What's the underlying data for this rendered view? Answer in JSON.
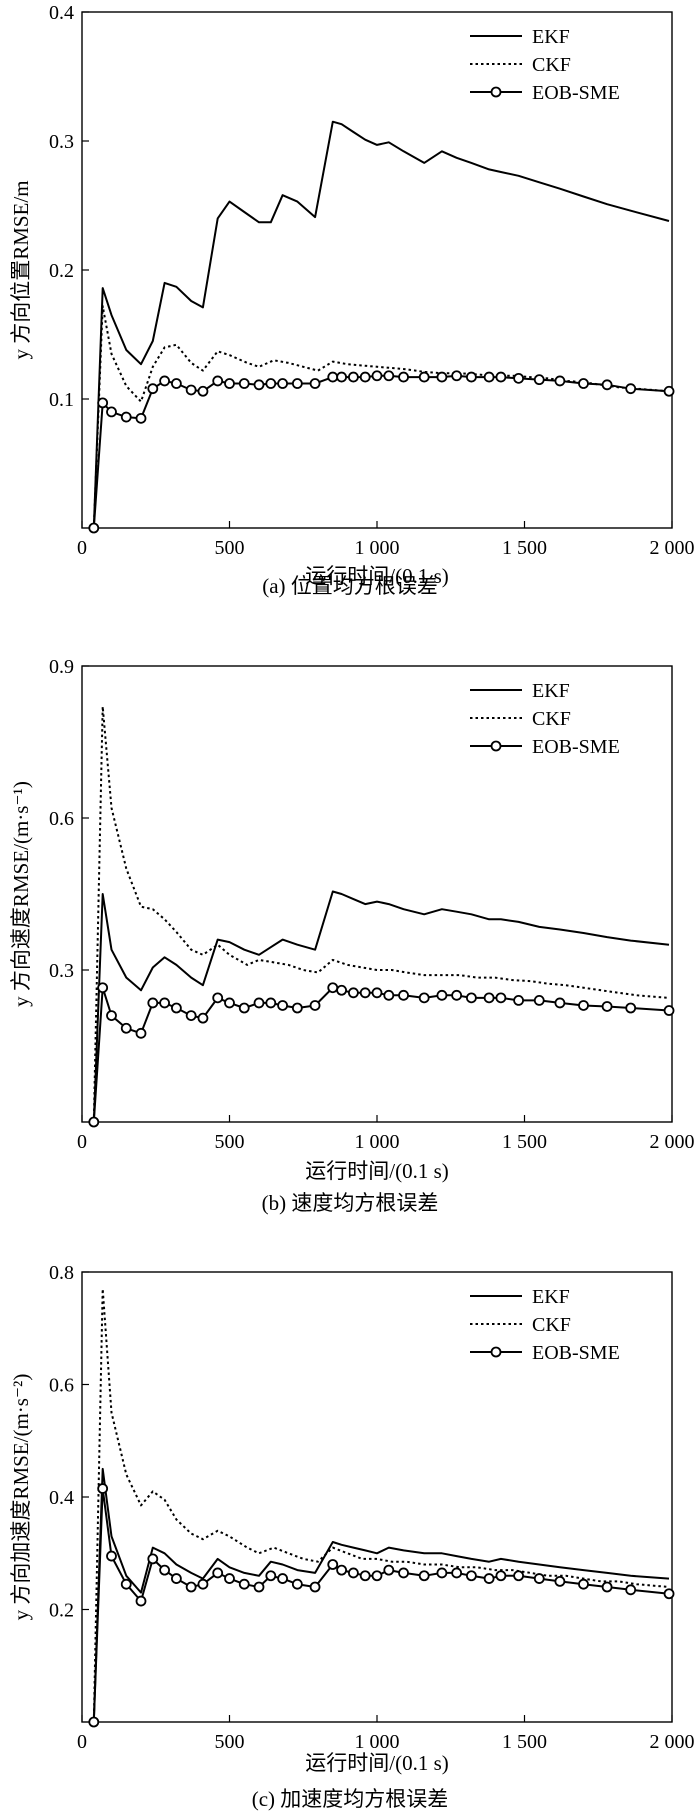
{
  "captions": [
    "(a) 位置均方根误差",
    "(b) 速度均方根误差",
    "(c) 加速度均方根误差"
  ],
  "chart_data": [
    {
      "type": "line",
      "xlabel": "运行时间/(0.1 s)",
      "ylabel": "y 方向位置RMSE/m",
      "xlim": [
        0,
        2000
      ],
      "ylim": [
        0,
        0.4
      ],
      "xticks": [
        0,
        500,
        1000,
        1500,
        2000
      ],
      "xtick_labels": [
        "0",
        "500",
        "1 000",
        "1 500",
        "2 000"
      ],
      "yticks": [
        0.1,
        0.2,
        0.3,
        0.4
      ],
      "ytick_labels": [
        "0.1",
        "0.2",
        "0.3",
        "0.4"
      ],
      "grid": false,
      "legend": "top-right",
      "series": [
        {
          "name": "EKF",
          "style": "solid",
          "x": [
            40,
            70,
            100,
            150,
            200,
            240,
            280,
            320,
            370,
            410,
            460,
            500,
            550,
            600,
            640,
            680,
            730,
            790,
            850,
            880,
            920,
            960,
            1000,
            1040,
            1090,
            1160,
            1220,
            1270,
            1320,
            1380,
            1420,
            1480,
            1550,
            1620,
            1700,
            1780,
            1860,
            1990
          ],
          "y": [
            0,
            0.186,
            0.165,
            0.138,
            0.127,
            0.145,
            0.19,
            0.187,
            0.176,
            0.171,
            0.24,
            0.253,
            0.245,
            0.237,
            0.237,
            0.258,
            0.253,
            0.241,
            0.315,
            0.313,
            0.307,
            0.301,
            0.297,
            0.299,
            0.292,
            0.283,
            0.292,
            0.287,
            0.283,
            0.278,
            0.276,
            0.273,
            0.268,
            0.263,
            0.257,
            0.251,
            0.246,
            0.238
          ]
        },
        {
          "name": "CKF",
          "style": "dotted",
          "x": [
            40,
            70,
            100,
            150,
            200,
            240,
            280,
            320,
            370,
            410,
            460,
            500,
            560,
            600,
            650,
            700,
            750,
            800,
            850,
            900,
            950,
            1000,
            1050,
            1100,
            1160,
            1220,
            1280,
            1340,
            1400,
            1460,
            1520,
            1580,
            1640,
            1700,
            1760,
            1820,
            1880,
            1990
          ],
          "y": [
            0,
            0.172,
            0.135,
            0.11,
            0.098,
            0.125,
            0.14,
            0.142,
            0.128,
            0.122,
            0.137,
            0.134,
            0.128,
            0.125,
            0.13,
            0.128,
            0.125,
            0.122,
            0.129,
            0.127,
            0.126,
            0.125,
            0.124,
            0.123,
            0.121,
            0.12,
            0.12,
            0.119,
            0.118,
            0.118,
            0.117,
            0.116,
            0.114,
            0.113,
            0.111,
            0.109,
            0.108,
            0.106
          ]
        },
        {
          "name": "EOB-SME",
          "style": "solid-circle",
          "x": [
            40,
            70,
            100,
            150,
            200,
            240,
            280,
            320,
            370,
            410,
            460,
            500,
            550,
            600,
            640,
            680,
            730,
            790,
            850,
            880,
            920,
            960,
            1000,
            1040,
            1090,
            1160,
            1220,
            1270,
            1320,
            1380,
            1420,
            1480,
            1550,
            1620,
            1700,
            1780,
            1860,
            1990
          ],
          "y": [
            0,
            0.097,
            0.09,
            0.086,
            0.085,
            0.108,
            0.114,
            0.112,
            0.107,
            0.106,
            0.114,
            0.112,
            0.112,
            0.111,
            0.112,
            0.112,
            0.112,
            0.112,
            0.117,
            0.117,
            0.117,
            0.117,
            0.118,
            0.118,
            0.117,
            0.117,
            0.117,
            0.118,
            0.117,
            0.117,
            0.117,
            0.116,
            0.115,
            0.114,
            0.112,
            0.111,
            0.108,
            0.106
          ]
        }
      ]
    },
    {
      "type": "line",
      "xlabel": "运行时间/(0.1 s)",
      "ylabel": "y 方向速度RMSE/(m·s⁻¹)",
      "xlim": [
        0,
        2000
      ],
      "ylim": [
        0,
        0.9
      ],
      "xticks": [
        0,
        500,
        1000,
        1500,
        2000
      ],
      "xtick_labels": [
        "0",
        "500",
        "1 000",
        "1 500",
        "2 000"
      ],
      "yticks": [
        0.3,
        0.6,
        0.9
      ],
      "ytick_labels": [
        "0.3",
        "0.6",
        "0.9"
      ],
      "grid": false,
      "legend": "top-right",
      "series": [
        {
          "name": "EKF",
          "style": "solid",
          "x": [
            40,
            70,
            100,
            150,
            200,
            240,
            280,
            320,
            370,
            410,
            460,
            500,
            550,
            600,
            640,
            680,
            730,
            790,
            850,
            880,
            920,
            960,
            1000,
            1040,
            1090,
            1160,
            1220,
            1270,
            1320,
            1380,
            1420,
            1480,
            1550,
            1620,
            1700,
            1780,
            1860,
            1990
          ],
          "y": [
            0,
            0.45,
            0.34,
            0.285,
            0.26,
            0.305,
            0.325,
            0.31,
            0.285,
            0.27,
            0.36,
            0.355,
            0.34,
            0.33,
            0.345,
            0.36,
            0.35,
            0.34,
            0.455,
            0.45,
            0.44,
            0.43,
            0.435,
            0.43,
            0.42,
            0.41,
            0.42,
            0.415,
            0.41,
            0.4,
            0.4,
            0.395,
            0.385,
            0.38,
            0.373,
            0.365,
            0.358,
            0.35
          ]
        },
        {
          "name": "CKF",
          "style": "dotted",
          "x": [
            40,
            70,
            100,
            150,
            200,
            240,
            280,
            320,
            370,
            410,
            460,
            500,
            560,
            600,
            650,
            700,
            750,
            800,
            850,
            900,
            950,
            1000,
            1050,
            1100,
            1160,
            1220,
            1280,
            1340,
            1400,
            1460,
            1520,
            1580,
            1640,
            1700,
            1760,
            1820,
            1880,
            1990
          ],
          "y": [
            0,
            0.82,
            0.62,
            0.5,
            0.425,
            0.42,
            0.4,
            0.375,
            0.34,
            0.33,
            0.35,
            0.33,
            0.31,
            0.32,
            0.315,
            0.31,
            0.3,
            0.295,
            0.32,
            0.31,
            0.305,
            0.3,
            0.3,
            0.295,
            0.29,
            0.29,
            0.29,
            0.285,
            0.285,
            0.28,
            0.278,
            0.273,
            0.27,
            0.265,
            0.26,
            0.255,
            0.25,
            0.245
          ]
        },
        {
          "name": "EOB-SME",
          "style": "solid-circle",
          "x": [
            40,
            70,
            100,
            150,
            200,
            240,
            280,
            320,
            370,
            410,
            460,
            500,
            550,
            600,
            640,
            680,
            730,
            790,
            850,
            880,
            920,
            960,
            1000,
            1040,
            1090,
            1160,
            1220,
            1270,
            1320,
            1380,
            1420,
            1480,
            1550,
            1620,
            1700,
            1780,
            1860,
            1990
          ],
          "y": [
            0,
            0.265,
            0.21,
            0.185,
            0.175,
            0.235,
            0.235,
            0.225,
            0.21,
            0.205,
            0.245,
            0.235,
            0.225,
            0.235,
            0.235,
            0.23,
            0.225,
            0.23,
            0.265,
            0.26,
            0.255,
            0.255,
            0.255,
            0.25,
            0.25,
            0.245,
            0.25,
            0.25,
            0.245,
            0.245,
            0.245,
            0.24,
            0.24,
            0.235,
            0.23,
            0.228,
            0.225,
            0.22
          ]
        }
      ]
    },
    {
      "type": "line",
      "xlabel": "运行时间/(0.1 s)",
      "ylabel": "y 方向加速度RMSE/(m·s⁻²)",
      "xlim": [
        0,
        2000
      ],
      "ylim": [
        0,
        0.8
      ],
      "xticks": [
        0,
        500,
        1000,
        1500,
        2000
      ],
      "xtick_labels": [
        "0",
        "500",
        "1 000",
        "1 500",
        "2 000"
      ],
      "yticks": [
        0.2,
        0.4,
        0.6,
        0.8
      ],
      "ytick_labels": [
        "0.2",
        "0.4",
        "0.6",
        "0.8"
      ],
      "grid": false,
      "legend": "top-right",
      "series": [
        {
          "name": "EKF",
          "style": "solid",
          "x": [
            40,
            70,
            100,
            150,
            200,
            240,
            280,
            320,
            370,
            410,
            460,
            500,
            550,
            600,
            640,
            680,
            730,
            790,
            850,
            880,
            920,
            960,
            1000,
            1040,
            1090,
            1160,
            1220,
            1270,
            1320,
            1380,
            1420,
            1480,
            1550,
            1620,
            1700,
            1780,
            1860,
            1990
          ],
          "y": [
            0,
            0.45,
            0.33,
            0.26,
            0.23,
            0.31,
            0.3,
            0.28,
            0.265,
            0.255,
            0.29,
            0.275,
            0.265,
            0.26,
            0.285,
            0.28,
            0.27,
            0.265,
            0.32,
            0.315,
            0.31,
            0.305,
            0.3,
            0.31,
            0.305,
            0.3,
            0.3,
            0.295,
            0.29,
            0.285,
            0.29,
            0.285,
            0.28,
            0.275,
            0.27,
            0.265,
            0.26,
            0.255
          ]
        },
        {
          "name": "CKF",
          "style": "dotted",
          "x": [
            40,
            70,
            100,
            150,
            200,
            240,
            280,
            320,
            370,
            410,
            460,
            500,
            560,
            600,
            650,
            700,
            750,
            800,
            850,
            900,
            950,
            1000,
            1050,
            1100,
            1160,
            1220,
            1280,
            1340,
            1400,
            1460,
            1520,
            1580,
            1640,
            1700,
            1760,
            1820,
            1880,
            1990
          ],
          "y": [
            0,
            0.77,
            0.55,
            0.44,
            0.385,
            0.41,
            0.395,
            0.36,
            0.335,
            0.325,
            0.34,
            0.33,
            0.31,
            0.3,
            0.31,
            0.3,
            0.29,
            0.285,
            0.31,
            0.3,
            0.29,
            0.29,
            0.285,
            0.285,
            0.28,
            0.28,
            0.275,
            0.275,
            0.27,
            0.27,
            0.265,
            0.26,
            0.26,
            0.255,
            0.25,
            0.25,
            0.245,
            0.24
          ]
        },
        {
          "name": "EOB-SME",
          "style": "solid-circle",
          "x": [
            40,
            70,
            100,
            150,
            200,
            240,
            280,
            320,
            370,
            410,
            460,
            500,
            550,
            600,
            640,
            680,
            730,
            790,
            850,
            880,
            920,
            960,
            1000,
            1040,
            1090,
            1160,
            1220,
            1270,
            1320,
            1380,
            1420,
            1480,
            1550,
            1620,
            1700,
            1780,
            1860,
            1990
          ],
          "y": [
            0,
            0.415,
            0.295,
            0.245,
            0.215,
            0.29,
            0.27,
            0.255,
            0.24,
            0.245,
            0.265,
            0.255,
            0.245,
            0.24,
            0.26,
            0.255,
            0.245,
            0.24,
            0.28,
            0.27,
            0.265,
            0.26,
            0.26,
            0.27,
            0.265,
            0.26,
            0.265,
            0.265,
            0.26,
            0.255,
            0.26,
            0.26,
            0.255,
            0.25,
            0.245,
            0.24,
            0.235,
            0.228
          ]
        }
      ]
    }
  ]
}
